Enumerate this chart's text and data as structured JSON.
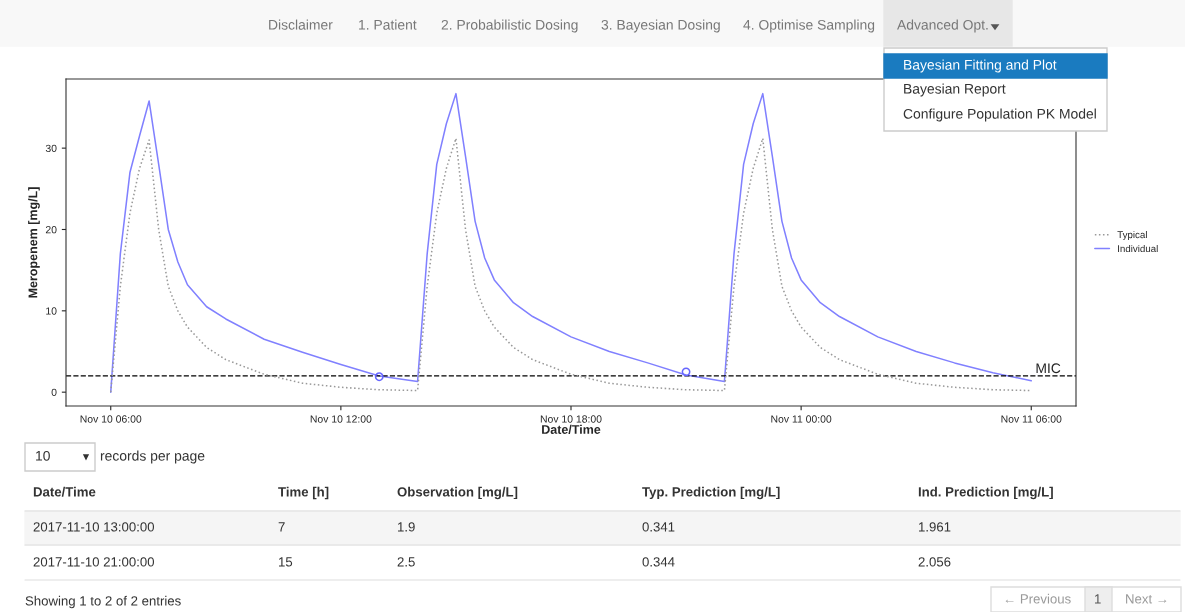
{
  "chart_data": {
    "type": "line",
    "xlabel": "Date/Time",
    "ylabel": "Meropenem [mg/L]",
    "x": [
      "2017-11-10T06:00",
      "2017-11-10T06:15",
      "2017-11-10T06:30",
      "2017-11-10T06:45",
      "2017-11-10T07:00",
      "2017-11-10T07:15",
      "2017-11-10T07:30",
      "2017-11-10T07:45",
      "2017-11-10T08:00",
      "2017-11-10T08:30",
      "2017-11-10T09:00",
      "2017-11-10T10:00",
      "2017-11-10T11:00",
      "2017-11-10T12:00",
      "2017-11-10T13:00",
      "2017-11-10T14:00",
      "2017-11-10T14:15",
      "2017-11-10T14:30",
      "2017-11-10T14:45",
      "2017-11-10T15:00",
      "2017-11-10T15:15",
      "2017-11-10T15:30",
      "2017-11-10T15:45",
      "2017-11-10T16:00",
      "2017-11-10T16:30",
      "2017-11-10T17:00",
      "2017-11-10T18:00",
      "2017-11-10T19:00",
      "2017-11-10T20:00",
      "2017-11-10T21:00",
      "2017-11-10T22:00",
      "2017-11-10T22:15",
      "2017-11-10T22:30",
      "2017-11-10T22:45",
      "2017-11-10T23:00",
      "2017-11-10T23:15",
      "2017-11-10T23:30",
      "2017-11-10T23:45",
      "2017-11-11T00:00",
      "2017-11-11T00:30",
      "2017-11-11T01:00",
      "2017-11-11T02:00",
      "2017-11-11T03:00",
      "2017-11-11T04:00",
      "2017-11-11T05:00",
      "2017-11-11T06:00"
    ],
    "series": [
      {
        "name": "Typical",
        "color": "#999999",
        "line_style": "dotted",
        "values": [
          0,
          13,
          22,
          27.5,
          31,
          20,
          13,
          10,
          8,
          5.5,
          4,
          2.2,
          1.1,
          0.6,
          0.3,
          0.2,
          13,
          22,
          27.5,
          31.2,
          20,
          13,
          10,
          8,
          5.5,
          4,
          2.2,
          1.1,
          0.6,
          0.3,
          0.2,
          13,
          22,
          27.5,
          31.2,
          20,
          13,
          10,
          8,
          5.5,
          4,
          2.2,
          1.1,
          0.6,
          0.3,
          0.2
        ]
      },
      {
        "name": "Individual",
        "color": "#8080ff",
        "line_style": "solid",
        "values": [
          0,
          17,
          27,
          31.5,
          35.8,
          28,
          20,
          16,
          13.2,
          10.5,
          9,
          6.5,
          4.9,
          3.4,
          2.0,
          1.3,
          17,
          28,
          33,
          36.7,
          29,
          21,
          16.5,
          13.8,
          11,
          9.3,
          6.8,
          5,
          3.6,
          2.1,
          1.3,
          17,
          28,
          33,
          36.7,
          29,
          21,
          16.5,
          13.8,
          11,
          9.3,
          6.8,
          5,
          3.6,
          2.4,
          1.4
        ]
      },
      {
        "type": "scatter",
        "marker": "circle",
        "color": "#6666ff",
        "x": [
          "2017-11-10T13:00",
          "2017-11-10T21:00"
        ],
        "values": [
          1.9,
          2.5
        ]
      }
    ],
    "xlim": [
      "2017-11-10T04:50",
      "2017-11-11T07:10"
    ],
    "xticks": [
      {
        "value": "2017-11-10T06:00",
        "label": "Nov 10 06:00"
      },
      {
        "value": "2017-11-10T12:00",
        "label": "Nov 10 12:00"
      },
      {
        "value": "2017-11-10T18:00",
        "label": "Nov 10 18:00"
      },
      {
        "value": "2017-11-11T00:00",
        "label": "Nov 11 00:00"
      },
      {
        "value": "2017-11-11T06:00",
        "label": "Nov 11 06:00"
      }
    ],
    "ylim": [
      -1.7,
      38.5
    ],
    "yticks": [
      0,
      10,
      20,
      30
    ],
    "ref_lines": [
      {
        "axis": "y",
        "value": 2,
        "label": "MIC",
        "color": "#000000",
        "line_style": "dashed"
      }
    ],
    "grid": false,
    "legend": "right",
    "annotations": [
      "Disclaimer",
      "1. Patient",
      "2. Probabilistic Dosing",
      "3. Bayesian Dosing",
      "4. Optimise Sampling",
      "Advanced Opt.",
      "Bayesian Fitting and Plot",
      "Bayesian Report",
      "Configure Population PK Model",
      "10",
      "records per page",
      "Date/Time",
      "Time [h]",
      "Observation [mg/L]",
      "Typ. Prediction [mg/L]",
      "Ind. Prediction [mg/L]",
      "2017-11-10 13:00:00",
      "7",
      "1.9",
      "0.341",
      "1.961",
      "2017-11-10 21:00:00",
      "15",
      "2.5",
      "0.344",
      "2.056",
      "Showing 1 to 2 of 2 entries",
      "← Previous",
      "1",
      "Next →"
    ]
  }
}
